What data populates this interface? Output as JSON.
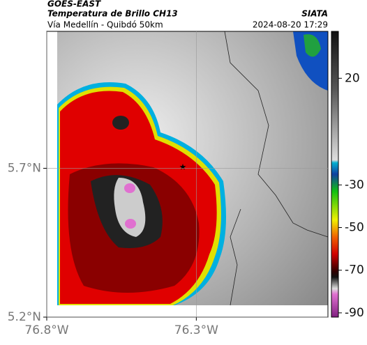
{
  "header": {
    "title": "GOES-EAST",
    "subtitle": "Temperatura de Brillo CH13",
    "route": "Vía Medellín - Quibdó 50km",
    "source": "SIATA",
    "datetime": "2024-08-20 17:29"
  },
  "map": {
    "xlim": [
      -76.8,
      -75.86
    ],
    "ylim": [
      5.2,
      6.16
    ],
    "xticks": [
      {
        "value": -76.8,
        "label": "76.8°W"
      },
      {
        "value": -76.3,
        "label": "76.3°W"
      }
    ],
    "yticks": [
      {
        "value": 5.2,
        "label": "5.2°N"
      },
      {
        "value": 5.7,
        "label": "5.7°N"
      }
    ],
    "grid": true
  },
  "colorbar": {
    "lim": [
      42,
      -92
    ],
    "ticks": [
      20,
      -30,
      -50,
      -70,
      -90
    ]
  }
}
